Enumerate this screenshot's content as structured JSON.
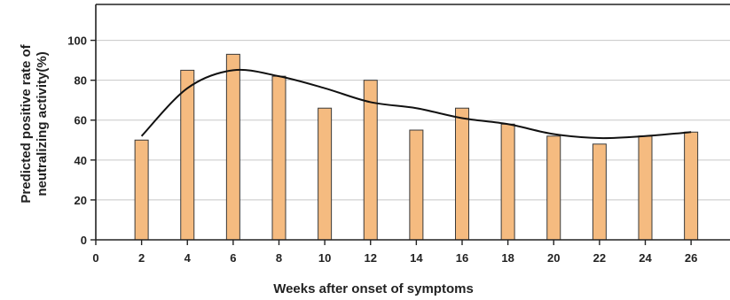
{
  "chart_data": {
    "type": "bar",
    "title": "",
    "xlabel": "Weeks after onset of symptoms",
    "ylabel_lines": [
      "Predicted positive rate of",
      "neutralizing activity(%)"
    ],
    "x": [
      2,
      4,
      6,
      8,
      10,
      12,
      14,
      16,
      18,
      20,
      22,
      24,
      26
    ],
    "values": [
      50,
      85,
      93,
      82,
      66,
      80,
      55,
      66,
      58,
      52,
      48,
      52,
      54
    ],
    "trend": {
      "x": [
        2,
        4,
        6,
        8,
        10,
        12,
        14,
        16,
        18,
        20,
        22,
        24,
        26
      ],
      "y": [
        52,
        76,
        85,
        82,
        76,
        69,
        66,
        61,
        58,
        53,
        51,
        52,
        54
      ]
    },
    "xlim": [
      0,
      27.7
    ],
    "ylim": [
      0,
      118
    ],
    "xticks": [
      0,
      2,
      4,
      6,
      8,
      10,
      12,
      14,
      16,
      18,
      20,
      22,
      24,
      26
    ],
    "yticks": [
      0,
      20,
      40,
      60,
      80,
      100
    ],
    "grid": true,
    "colors": {
      "bar": "#f5bb80",
      "line": "#111111",
      "grid": "#c8c8c8"
    }
  }
}
